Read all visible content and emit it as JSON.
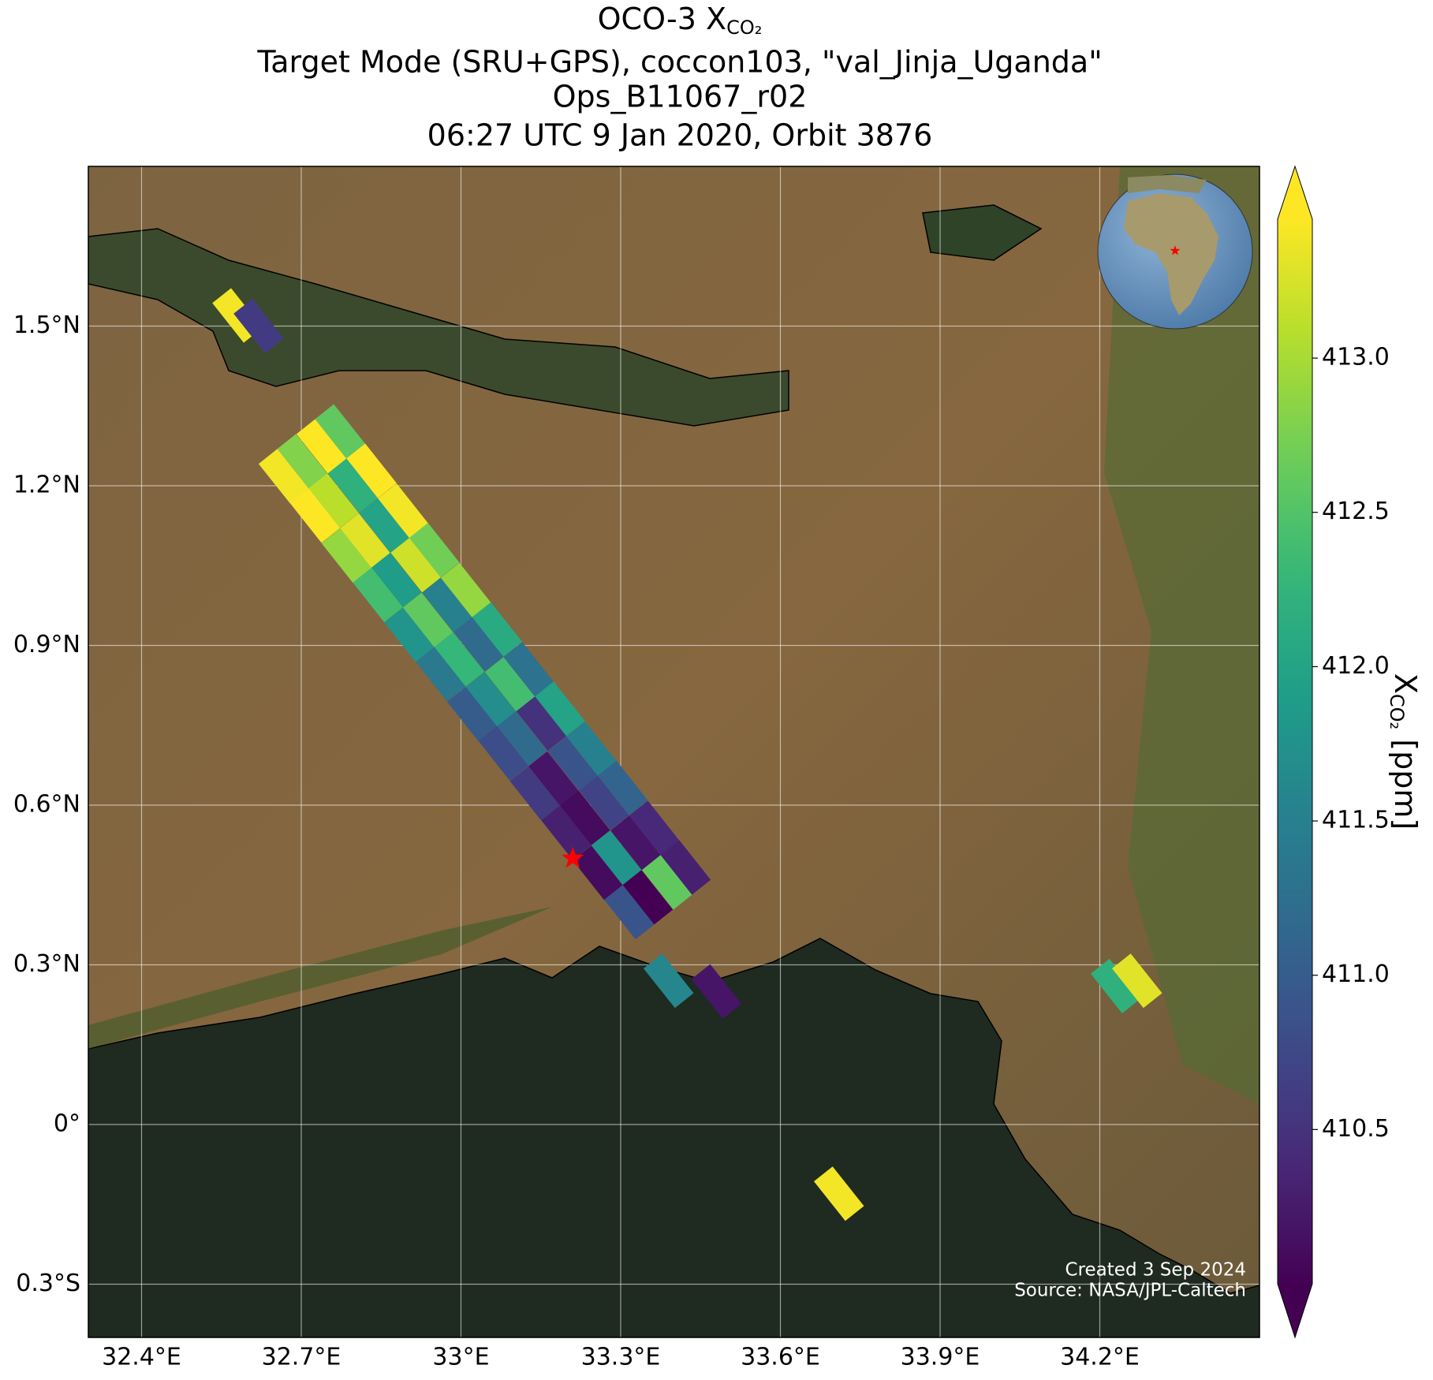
{
  "chart_data": {
    "type": "map",
    "title": {
      "prefix": "OCO-3 X",
      "subscript": "CO₂"
    },
    "subtitle_lines": [
      "Target Mode (SRU+GPS), coccon103, \"val_Jinja_Uganda\"",
      "Ops_B11067_r02",
      "06:27 UTC 9 Jan 2020, Orbit 3876"
    ],
    "xlim": [
      32.3,
      34.5
    ],
    "ylim": [
      -0.4,
      1.8
    ],
    "xticks": [
      {
        "value": 32.4,
        "label": "32.4°E"
      },
      {
        "value": 32.7,
        "label": "32.7°E"
      },
      {
        "value": 33,
        "label": "33°E"
      },
      {
        "value": 33.3,
        "label": "33.3°E"
      },
      {
        "value": 33.6,
        "label": "33.6°E"
      },
      {
        "value": 33.9,
        "label": "33.9°E"
      },
      {
        "value": 34.2,
        "label": "34.2°E"
      }
    ],
    "yticks": [
      {
        "value": -0.3,
        "label": "0.3°S"
      },
      {
        "value": 0,
        "label": "0°"
      },
      {
        "value": 0.3,
        "label": "0.3°N"
      },
      {
        "value": 0.6,
        "label": "0.6°N"
      },
      {
        "value": 0.9,
        "label": "0.9°N"
      },
      {
        "value": 1.2,
        "label": "1.2°N"
      },
      {
        "value": 1.5,
        "label": "1.5°N"
      }
    ],
    "grid": true,
    "colormap": "viridis",
    "clim": [
      410.0,
      413.45
    ],
    "soundings": {
      "lon": [
        32.667,
        32.702,
        32.738,
        32.773,
        32.726,
        32.761,
        32.797,
        32.832,
        32.785,
        32.82,
        32.856,
        32.891,
        32.844,
        32.879,
        32.915,
        32.95,
        32.903,
        32.938,
        32.974,
        33.009,
        32.962,
        32.997,
        33.033,
        33.068,
        33.021,
        33.056,
        33.092,
        33.127,
        33.08,
        33.115,
        33.151,
        33.186,
        33.139,
        33.174,
        33.21,
        33.245,
        33.198,
        33.233,
        33.269,
        33.304,
        33.257,
        33.292,
        33.328,
        33.363,
        33.316,
        33.351,
        33.387,
        33.422,
        32.58,
        32.62,
        34.23,
        34.27,
        33.71,
        33.39,
        33.48
      ],
      "lat": [
        1.218,
        1.246,
        1.274,
        1.302,
        1.144,
        1.172,
        1.2,
        1.228,
        1.069,
        1.097,
        1.125,
        1.153,
        0.995,
        1.023,
        1.051,
        1.079,
        0.92,
        0.948,
        0.976,
        1.004,
        0.846,
        0.874,
        0.902,
        0.93,
        0.771,
        0.799,
        0.827,
        0.855,
        0.697,
        0.725,
        0.753,
        0.781,
        0.622,
        0.65,
        0.678,
        0.706,
        0.548,
        0.576,
        0.604,
        0.632,
        0.473,
        0.501,
        0.529,
        0.557,
        0.399,
        0.427,
        0.455,
        0.483,
        1.52,
        1.5,
        0.26,
        0.27,
        -0.13,
        0.27,
        0.25
      ],
      "values": [
        413.4,
        412.8,
        413.5,
        412.6,
        413.6,
        413.1,
        412.2,
        413.5,
        412.9,
        413.3,
        412.0,
        413.4,
        412.4,
        411.9,
        413.2,
        412.7,
        411.8,
        412.6,
        411.5,
        412.9,
        411.4,
        412.3,
        411.2,
        412.1,
        411.0,
        411.7,
        412.4,
        411.3,
        410.8,
        411.2,
        410.5,
        412.0,
        410.6,
        410.2,
        410.9,
        411.5,
        410.3,
        410.1,
        410.7,
        411.1,
        410.1,
        411.8,
        410.2,
        410.4,
        410.9,
        410.0,
        412.6,
        410.3,
        413.4,
        410.6,
        412.2,
        413.3,
        413.4,
        411.6,
        410.2
      ]
    },
    "colorbar": {
      "label_prefix": "X",
      "label_subscript": "CO₂",
      "label_suffix": " [ppm]",
      "extend": "both",
      "ticks": [
        410.5,
        {
          "value": 411,
          "label": "411.0"
        },
        411.5,
        {
          "value": 412,
          "label": "412.0"
        },
        412.5,
        {
          "value": 413,
          "label": "413.0"
        }
      ]
    },
    "target": {
      "lon": 33.21,
      "lat": 0.5,
      "color": "#ff0000"
    },
    "annotations": [
      "Created 3 Sep 2024",
      "Source: NASA/JPL-Caltech"
    ]
  }
}
